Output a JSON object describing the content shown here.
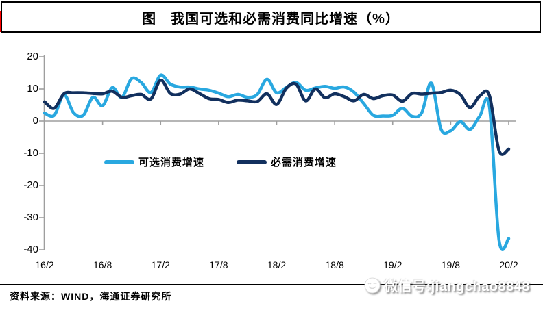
{
  "title": {
    "text": "图　我国可选和必需消费同比增速（%）"
  },
  "source": {
    "text": "资料来源：WIND，海通证券研究所"
  },
  "watermark": {
    "text": "微信号:jiangchao8848",
    "icon": "smiley-face-icon"
  },
  "colors": {
    "optional_series": "#29a8e0",
    "necessity_series": "#12305e",
    "axis": "#9e9e9e",
    "red_edge_mark": "#ff0000",
    "rule": "#000000"
  },
  "chart_data": {
    "type": "line",
    "title": "图　我国可选和必需消费同比增速（%）",
    "xlabel": "",
    "ylabel": "",
    "ylim": [
      -40,
      20
    ],
    "grid": "zero-line-only",
    "legend_position": "inside-left-middle",
    "y_tick_labels": [
      "20",
      "10",
      "0",
      "-10",
      "-20",
      "-30",
      "-40"
    ],
    "y_tick_values": [
      20,
      10,
      0,
      -10,
      -20,
      -30,
      -40
    ],
    "x_tick_labels": [
      "16/2",
      "16/8",
      "17/2",
      "17/8",
      "18/2",
      "18/8",
      "19/2",
      "19/8",
      "20/2"
    ],
    "x_months": [
      "16/2",
      "16/3",
      "16/4",
      "16/5",
      "16/6",
      "16/7",
      "16/8",
      "16/9",
      "16/10",
      "16/11",
      "16/12",
      "17/1",
      "17/2",
      "17/3",
      "17/4",
      "17/5",
      "17/6",
      "17/7",
      "17/8",
      "17/9",
      "17/10",
      "17/11",
      "17/12",
      "18/1",
      "18/2",
      "18/3",
      "18/4",
      "18/5",
      "18/6",
      "18/7",
      "18/8",
      "18/9",
      "18/10",
      "18/11",
      "18/12",
      "19/1",
      "19/2",
      "19/3",
      "19/4",
      "19/5",
      "19/6",
      "19/7",
      "19/8",
      "19/9",
      "19/10",
      "19/11",
      "19/12",
      "20/1",
      "20/2"
    ],
    "series": [
      {
        "name": "可选消费增速",
        "color": "#29a8e0",
        "values": [
          2.5,
          1.8,
          8.2,
          2.6,
          1.8,
          7.4,
          4.8,
          10.4,
          7.4,
          13.2,
          12.0,
          8.9,
          14.3,
          11.5,
          10.6,
          10.6,
          10.0,
          9.6,
          8.7,
          7.6,
          8.3,
          7.4,
          8.3,
          13.0,
          8.8,
          10.5,
          12.0,
          9.6,
          10.3,
          10.8,
          10.2,
          10.6,
          9.0,
          5.5,
          1.8,
          1.6,
          1.8,
          4.0,
          1.5,
          2.6,
          11.8,
          -2.5,
          -3.0,
          -0.2,
          -2.6,
          1.5,
          4.6,
          -37.0,
          -36.5
        ]
      },
      {
        "name": "必需消费增速",
        "color": "#12305e",
        "values": [
          6.0,
          4.0,
          8.5,
          8.8,
          8.8,
          8.6,
          8.5,
          9.3,
          7.4,
          7.9,
          8.3,
          6.9,
          12.7,
          8.6,
          8.4,
          10.0,
          8.6,
          7.0,
          6.7,
          5.8,
          6.5,
          6.3,
          6.1,
          8.5,
          5.2,
          10.2,
          11.5,
          6.3,
          10.0,
          7.3,
          8.5,
          7.6,
          6.3,
          8.3,
          7.0,
          7.9,
          8.1,
          6.2,
          8.6,
          8.4,
          8.7,
          8.9,
          9.6,
          8.2,
          4.2,
          7.8,
          8.0,
          -9.2,
          -8.7
        ]
      }
    ]
  }
}
